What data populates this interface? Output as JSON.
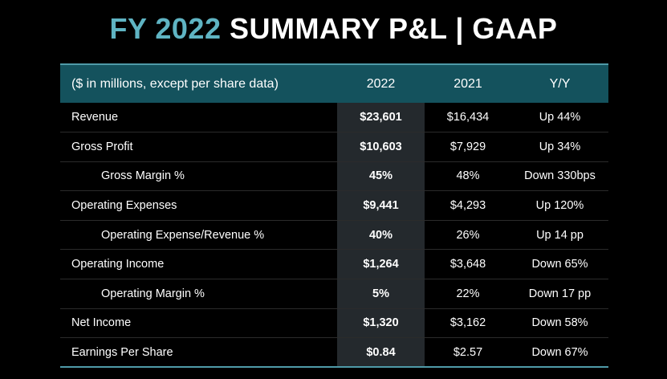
{
  "title": {
    "accent": "FY 2022",
    "main": "SUMMARY P&L  |  GAAP"
  },
  "colors": {
    "accent": "#5fb4c3",
    "header_band": "#14525d",
    "highlight_column": "#24292d",
    "background": "#000000"
  },
  "table": {
    "headers": [
      "($ in millions, except per share data)",
      "2022",
      "2021",
      "Y/Y"
    ],
    "rows": [
      {
        "label": "Revenue",
        "y2022": "$23,601",
        "y2021": "$16,434",
        "yy": "Up 44%"
      },
      {
        "label": "Gross Profit",
        "y2022": "$10,603",
        "y2021": "$7,929",
        "yy": "Up 34%"
      },
      {
        "label": "Gross Margin %",
        "y2022": "45%",
        "y2021": "48%",
        "yy": "Down 330bps"
      },
      {
        "label": "Operating Expenses",
        "y2022": "$9,441",
        "y2021": "$4,293",
        "yy": "Up 120%"
      },
      {
        "label": "Operating Expense/Revenue %",
        "y2022": "40%",
        "y2021": "26%",
        "yy": "Up 14 pp"
      },
      {
        "label": "Operating Income",
        "y2022": "$1,264",
        "y2021": "$3,648",
        "yy": "Down 65%"
      },
      {
        "label": "Operating Margin %",
        "y2022": "5%",
        "y2021": "22%",
        "yy": "Down 17 pp"
      },
      {
        "label": "Net Income",
        "y2022": "$1,320",
        "y2021": "$3,162",
        "yy": "Down 58%"
      },
      {
        "label": "Earnings Per Share",
        "y2022": "$0.84",
        "y2021": "$2.57",
        "yy": "Down 67%"
      }
    ]
  }
}
